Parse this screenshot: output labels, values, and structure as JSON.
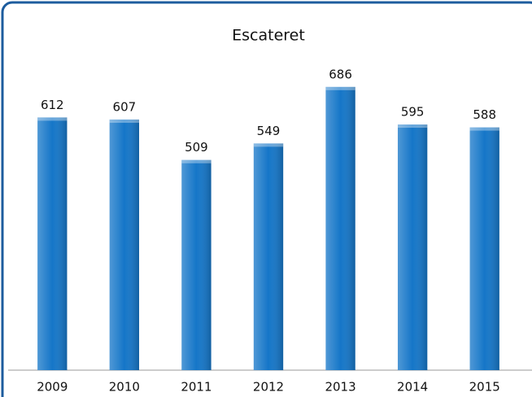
{
  "chart_data": {
    "type": "bar",
    "title": "Escateret",
    "categories": [
      "2009",
      "2010",
      "2011",
      "2012",
      "2013",
      "2014",
      "2015"
    ],
    "values": [
      612,
      607,
      509,
      549,
      686,
      595,
      588
    ],
    "color": "#1576c8",
    "ylim": [
      0,
      800
    ]
  }
}
